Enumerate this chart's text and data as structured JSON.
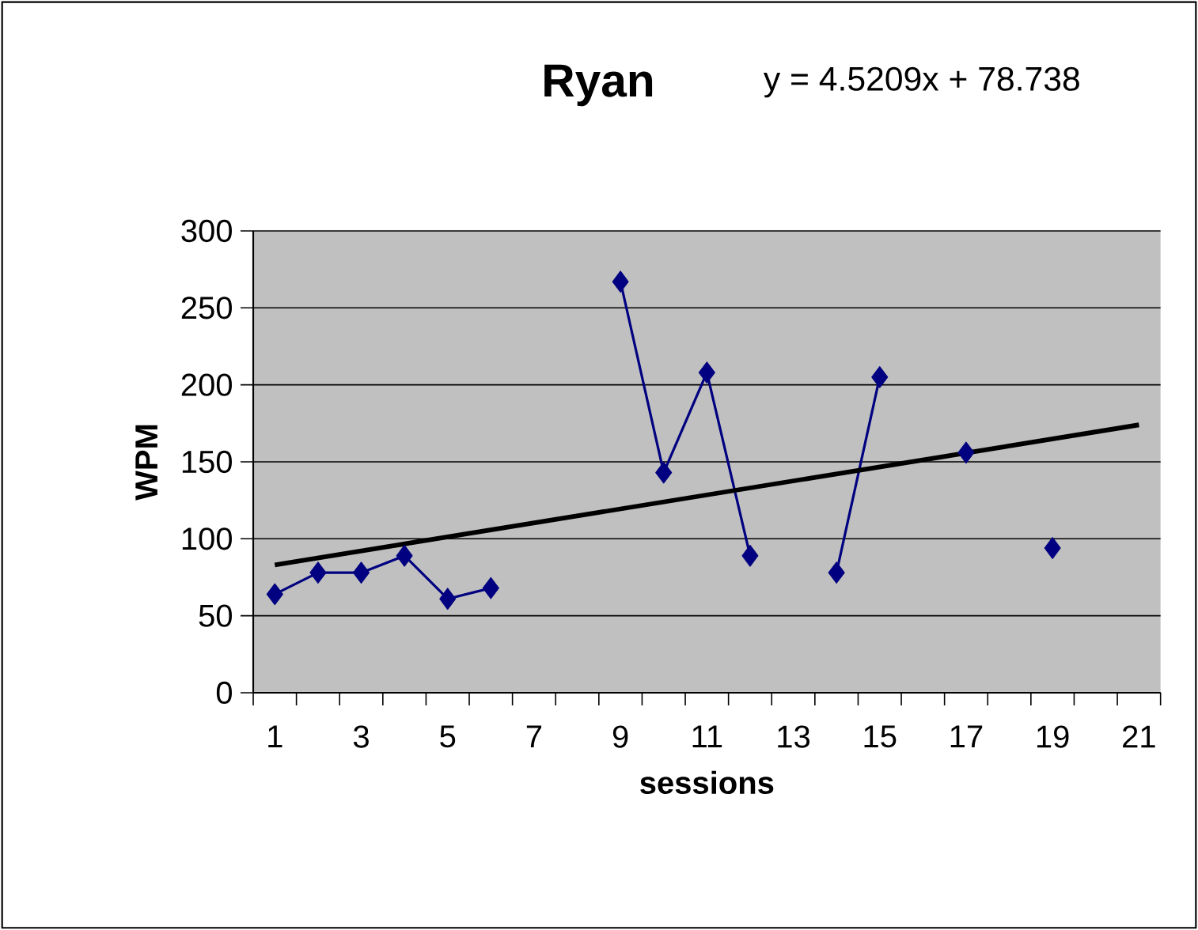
{
  "chart_data": {
    "type": "line",
    "title": "Ryan",
    "annotations": [
      "y = 4.5209x + 78.738"
    ],
    "xlabel": "sessions",
    "ylabel": "WPM",
    "x": [
      1,
      2,
      3,
      4,
      5,
      6,
      7,
      8,
      9,
      10,
      11,
      12,
      13,
      14,
      15,
      16,
      17,
      18,
      19
    ],
    "series": [
      {
        "color": "#000080",
        "values": [
          64,
          78,
          78,
          89,
          61,
          68,
          null,
          null,
          267,
          143,
          208,
          89,
          null,
          78,
          205,
          null,
          156,
          null,
          94
        ]
      },
      {
        "type": "line",
        "color": "#000000",
        "marker": "none",
        "x": [
          1,
          21
        ],
        "values": [
          83,
          174
        ]
      }
    ],
    "xlim": [
      0.5,
      21.5
    ],
    "xticks": [
      {
        "value": 0.5,
        "label": null
      },
      1,
      {
        "value": 1.5,
        "label": null
      },
      {
        "value": 2.5,
        "label": null
      },
      3,
      {
        "value": 3.5,
        "label": null
      },
      {
        "value": 4.5,
        "label": null
      },
      5,
      {
        "value": 5.5,
        "label": null
      },
      {
        "value": 6.5,
        "label": null
      },
      7,
      {
        "value": 7.5,
        "label": null
      },
      {
        "value": 8.5,
        "label": null
      },
      9,
      {
        "value": 9.5,
        "label": null
      },
      {
        "value": 10.5,
        "label": null
      },
      11,
      {
        "value": 11.5,
        "label": null
      },
      {
        "value": 12.5,
        "label": null
      },
      13,
      {
        "value": 13.5,
        "label": null
      },
      {
        "value": 14.5,
        "label": null
      },
      15,
      {
        "value": 15.5,
        "label": null
      },
      {
        "value": 16.5,
        "label": null
      },
      17,
      {
        "value": 17.5,
        "label": null
      },
      {
        "value": 18.5,
        "label": null
      },
      19,
      {
        "value": 19.5,
        "label": null
      },
      {
        "value": 20.5,
        "label": null
      },
      21,
      {
        "value": 21.5,
        "label": null
      }
    ],
    "ylim": [
      0,
      300
    ],
    "yticks": [
      0,
      50,
      100,
      150,
      200,
      250,
      300
    ],
    "grid": "y",
    "marker": "diamond",
    "line_style": "solid"
  }
}
